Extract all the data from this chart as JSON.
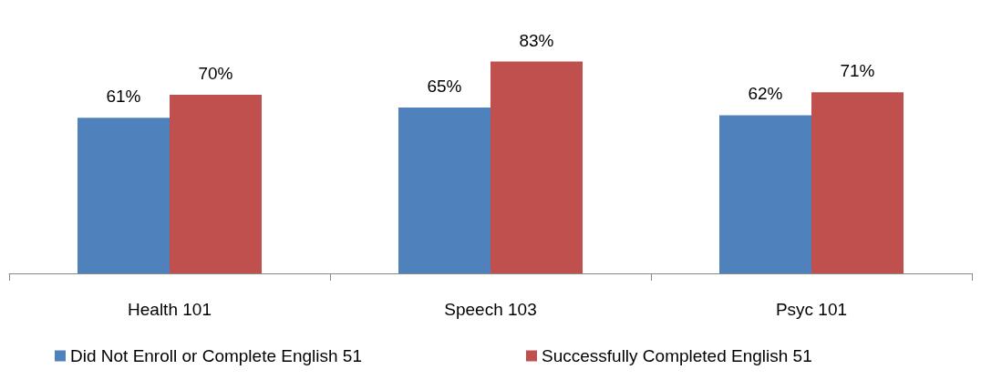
{
  "chart_data": {
    "type": "bar",
    "categories": [
      "Health 101",
      "Speech 103",
      "Psyc 101"
    ],
    "series": [
      {
        "name": "Did Not Enroll or Complete English 51",
        "color": "#4f81bd",
        "values": [
          61,
          65,
          62
        ],
        "value_labels": [
          "61%",
          "65%",
          "62%"
        ]
      },
      {
        "name": "Successfully Completed English 51",
        "color": "#c0504d",
        "values": [
          70,
          83,
          71
        ],
        "value_labels": [
          "70%",
          "83%",
          "71%"
        ]
      }
    ],
    "legend": "bottom",
    "grid": false
  }
}
